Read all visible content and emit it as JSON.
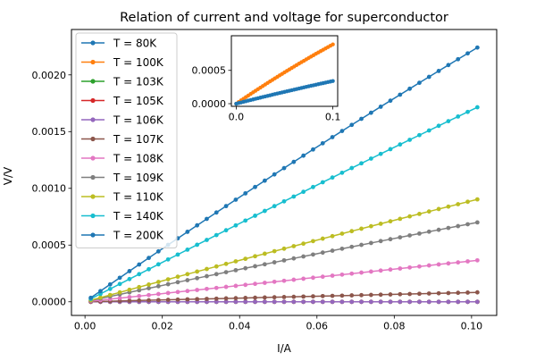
{
  "chart_data": [
    {
      "type": "line",
      "title": "Relation of current and voltage for superconductor",
      "xlabel": "I/A",
      "ylabel": "V/V",
      "xlim": [
        -0.0035,
        0.1065
      ],
      "ylim": [
        -0.00012,
        0.0024
      ],
      "xticks": [
        0.0,
        0.02,
        0.04,
        0.06,
        0.08,
        0.1
      ],
      "xtick_labels": [
        "0.00",
        "0.02",
        "0.04",
        "0.06",
        "0.08",
        "0.10"
      ],
      "yticks": [
        0.0,
        0.0005,
        0.001,
        0.0015,
        0.002
      ],
      "ytick_labels": [
        "0.0000",
        "0.0005",
        "0.0010",
        "0.0015",
        "0.0020"
      ],
      "grid": false,
      "legend_position": "upper-left",
      "x": {
        "start": 0.0015,
        "end": 0.1015,
        "step": 0.0025
      },
      "series": [
        {
          "name": "T = 80K",
          "color": "#1f77b4",
          "slope": 0.0,
          "curve": 0.0
        },
        {
          "name": "T = 100K",
          "color": "#ff7f0e",
          "slope": 0.0,
          "curve": 0.0
        },
        {
          "name": "T = 103K",
          "color": "#2ca02c",
          "slope": 0.0,
          "curve": 0.0
        },
        {
          "name": "T = 105K",
          "color": "#d62728",
          "slope": 0.0,
          "curve": 0.0
        },
        {
          "name": "T = 106K",
          "color": "#9467bd",
          "slope": 0.0,
          "curve": 0.0
        },
        {
          "name": "T = 107K",
          "color": "#8c564b",
          "slope": 0.00082,
          "curve": 0.0
        },
        {
          "name": "T = 108K",
          "color": "#e377c2",
          "slope": 0.0036,
          "curve": 0.0
        },
        {
          "name": "T = 109K",
          "color": "#7f7f7f",
          "slope": 0.0073,
          "curve": -0.004
        },
        {
          "name": "T = 110K",
          "color": "#bcbd22",
          "slope": 0.0093,
          "curve": -0.004
        },
        {
          "name": "T = 140K",
          "color": "#17becf",
          "slope": 0.0175,
          "curve": -0.006
        },
        {
          "name": "T = 200K",
          "color": "#1f77b4",
          "slope": 0.0237,
          "curve": -0.016
        }
      ]
    },
    {
      "type": "line",
      "title": "",
      "xlim": [
        -0.005,
        0.105
      ],
      "ylim": [
        -4e-05,
        0.00102
      ],
      "xticks": [
        0.0,
        0.1
      ],
      "xtick_labels": [
        "0.0",
        "0.1"
      ],
      "yticks": [
        0.0,
        0.0005
      ],
      "ytick_labels": [
        "0.0000",
        "0.0005"
      ],
      "grid": false,
      "x": {
        "start": 0.0,
        "end": 0.1,
        "step": 0.0025
      },
      "series": [
        {
          "name": "",
          "color": "#ff7f0e",
          "slope": 0.0099,
          "curve": -0.01
        },
        {
          "name": "",
          "color": "#1f77b4",
          "slope": 0.0037,
          "curve": -0.003
        }
      ]
    }
  ]
}
